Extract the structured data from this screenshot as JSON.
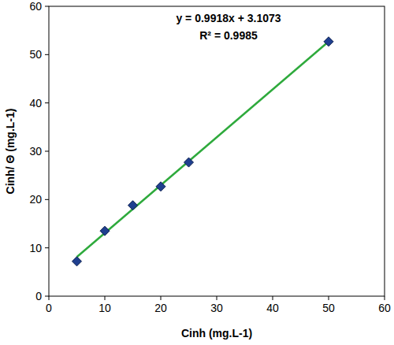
{
  "chart_data": {
    "type": "scatter",
    "x_label": "Cinh (mg.L-1)",
    "y_label": "Cinh/ Θ (mg.L-1)",
    "annotations": [
      "y = 0.9918x + 3.1073",
      "R² = 0.9985"
    ],
    "xlim": [
      0,
      60
    ],
    "xticks": [
      0,
      10,
      20,
      30,
      40,
      50,
      60
    ],
    "ylim": [
      0,
      60
    ],
    "yticks": [
      0,
      10,
      20,
      30,
      40,
      50,
      60
    ],
    "grid": false,
    "series": [
      {
        "type": "scatter",
        "marker": "diamond",
        "color": "#1f3f8f",
        "x": [
          5,
          10,
          15,
          20,
          25,
          50
        ],
        "values": [
          7.2,
          13.5,
          18.8,
          22.7,
          27.7,
          52.7
        ]
      },
      {
        "type": "line",
        "line_style": "solid",
        "color": "#2eaa3c",
        "x": [
          5,
          50
        ],
        "values": [
          8.1,
          52.7
        ]
      }
    ]
  }
}
